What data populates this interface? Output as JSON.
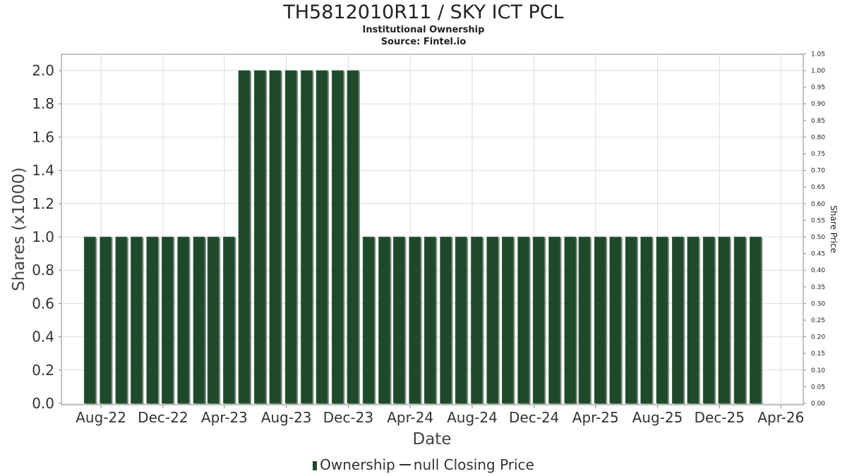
{
  "colors": {
    "bar": "#1f4a2a",
    "bar_shadow": "#8a8a8a",
    "grid": "#dddddd",
    "axis": "#888888"
  },
  "chart_data": {
    "type": "bar",
    "title": "TH5812010R11 / SKY ICT PCL",
    "subtitle": "Institutional Ownership",
    "source": "Source: Fintel.io",
    "xlabel": "Date",
    "ylabel": "Shares (x1000)",
    "y2label": "Share Price",
    "grid": true,
    "legend_placement": "bottom",
    "ylim": [
      0,
      2.1
    ],
    "y2lim": [
      0,
      1.05
    ],
    "y_ticks": [
      "0.0",
      "0.2",
      "0.4",
      "0.6",
      "0.8",
      "1.0",
      "1.2",
      "1.4",
      "1.6",
      "1.8",
      "2.0"
    ],
    "y2_ticks": [
      "0.00",
      "0.05",
      "0.10",
      "0.15",
      "0.20",
      "0.25",
      "0.30",
      "0.35",
      "0.40",
      "0.45",
      "0.50",
      "0.55",
      "0.60",
      "0.65",
      "0.70",
      "0.75",
      "0.80",
      "0.85",
      "0.90",
      "0.95",
      "1.00",
      "1.05"
    ],
    "x_ticks": [
      "Aug-22",
      "Dec-22",
      "Apr-23",
      "Aug-23",
      "Dec-23",
      "Apr-24",
      "Aug-24",
      "Dec-24",
      "Apr-25",
      "Aug-25",
      "Dec-25",
      "Apr-26"
    ],
    "x_range": [
      "2022-05-15",
      "2026-05-15"
    ],
    "series": [
      {
        "name": "Ownership",
        "points": [
          [
            "2022-07-10",
            1.0
          ],
          [
            "2022-08-10",
            1.0
          ],
          [
            "2022-09-10",
            1.0
          ],
          [
            "2022-10-10",
            1.0
          ],
          [
            "2022-11-10",
            1.0
          ],
          [
            "2022-12-10",
            1.0
          ],
          [
            "2023-01-10",
            1.0
          ],
          [
            "2023-02-10",
            1.0
          ],
          [
            "2023-03-10",
            1.0
          ],
          [
            "2023-04-10",
            1.0
          ],
          [
            "2023-05-10",
            2.0
          ],
          [
            "2023-06-10",
            2.0
          ],
          [
            "2023-07-10",
            2.0
          ],
          [
            "2023-08-10",
            2.0
          ],
          [
            "2023-09-10",
            2.0
          ],
          [
            "2023-10-10",
            2.0
          ],
          [
            "2023-11-10",
            2.0
          ],
          [
            "2023-12-10",
            2.0
          ],
          [
            "2024-01-10",
            1.0
          ],
          [
            "2024-02-10",
            1.0
          ],
          [
            "2024-03-10",
            1.0
          ],
          [
            "2024-04-10",
            1.0
          ],
          [
            "2024-05-10",
            1.0
          ],
          [
            "2024-06-10",
            1.0
          ],
          [
            "2024-07-10",
            1.0
          ],
          [
            "2024-08-10",
            1.0
          ],
          [
            "2024-09-10",
            1.0
          ],
          [
            "2024-10-10",
            1.0
          ],
          [
            "2024-11-10",
            1.0
          ],
          [
            "2024-12-10",
            1.0
          ],
          [
            "2025-01-10",
            1.0
          ],
          [
            "2025-02-10",
            1.0
          ],
          [
            "2025-03-10",
            1.0
          ],
          [
            "2025-04-10",
            1.0
          ],
          [
            "2025-05-10",
            1.0
          ],
          [
            "2025-06-10",
            1.0
          ],
          [
            "2025-07-10",
            1.0
          ],
          [
            "2025-08-10",
            1.0
          ],
          [
            "2025-09-10",
            1.0
          ],
          [
            "2025-10-10",
            1.0
          ],
          [
            "2025-11-10",
            1.0
          ],
          [
            "2025-12-10",
            1.0
          ],
          [
            "2026-01-10",
            1.0
          ],
          [
            "2026-02-10",
            1.0
          ]
        ]
      },
      {
        "name": "null Closing Price",
        "points": []
      }
    ]
  },
  "legend": {
    "bar_label": "Ownership",
    "line_label": "null Closing Price"
  }
}
